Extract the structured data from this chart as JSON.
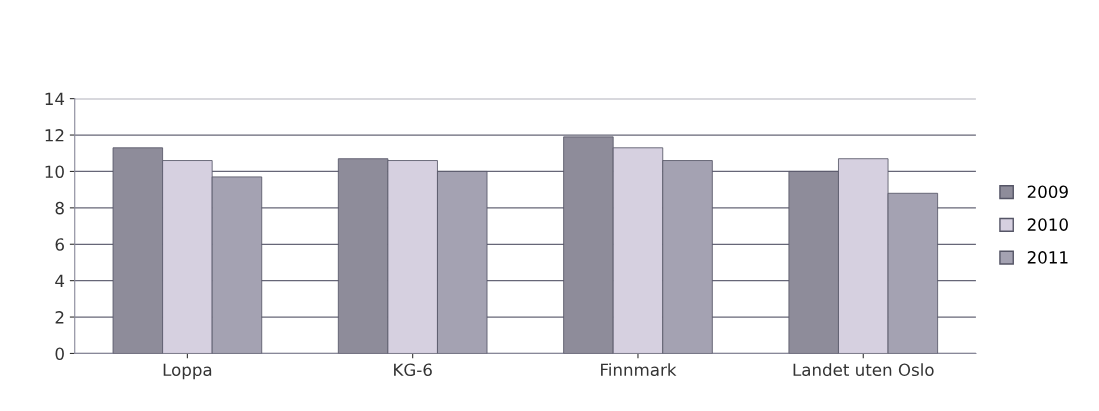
{
  "chart_data": {
    "type": "bar",
    "categories": [
      "Loppa",
      "KG-6",
      "Finnmark",
      "Landet uten Oslo"
    ],
    "series": [
      {
        "name": "2009",
        "color": "#8e8c9a",
        "values": [
          11.3,
          10.7,
          11.9,
          10.0
        ]
      },
      {
        "name": "2010",
        "color": "#d6d0e0",
        "values": [
          10.6,
          10.6,
          11.3,
          10.7
        ]
      },
      {
        "name": "2011",
        "color": "#a4a2b2",
        "values": [
          9.7,
          10.0,
          10.6,
          8.8
        ]
      }
    ],
    "ylim": [
      0,
      14
    ],
    "yticks": [
      0,
      2,
      4,
      6,
      8,
      10,
      12,
      14
    ],
    "grid": "y",
    "legend": "right"
  }
}
